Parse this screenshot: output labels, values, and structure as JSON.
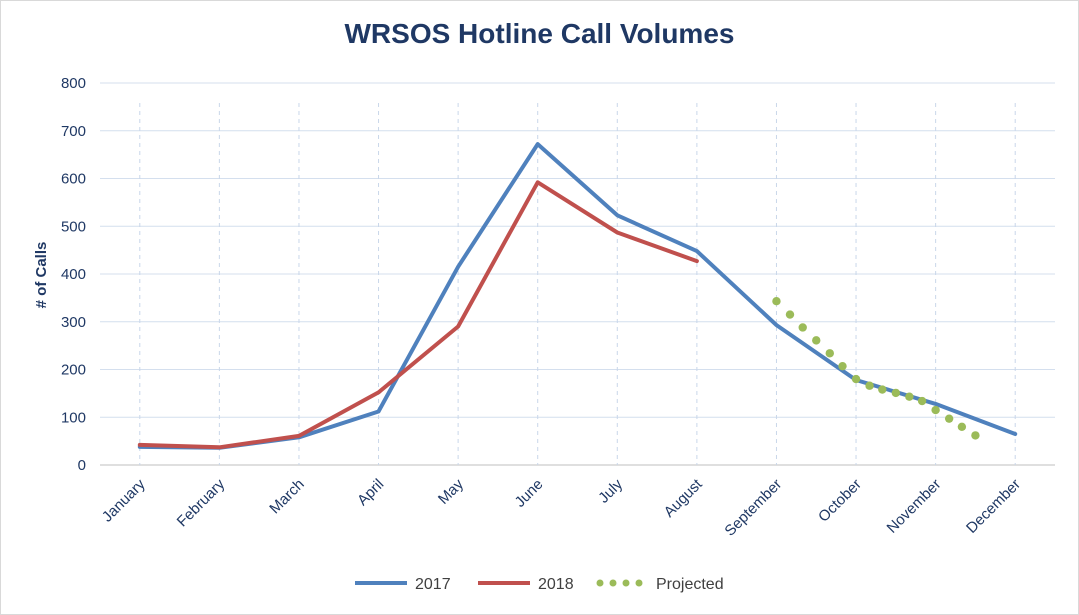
{
  "chart_data": {
    "type": "line",
    "title": "WRSOS Hotline Call Volumes",
    "xlabel": "",
    "ylabel": "# of Calls",
    "ylim": [
      0,
      800
    ],
    "yticks": [
      0,
      100,
      200,
      300,
      400,
      500,
      600,
      700,
      800
    ],
    "grid": true,
    "legend_position": "bottom",
    "categories": [
      "January",
      "February",
      "March",
      "April",
      "May",
      "June",
      "July",
      "August",
      "September",
      "October",
      "November",
      "December"
    ],
    "series": [
      {
        "name": "2017",
        "color": "#4f81bd",
        "style": "solid",
        "values": [
          38,
          36,
          58,
          112,
          415,
          672,
          523,
          448,
          293,
          178,
          128,
          65
        ]
      },
      {
        "name": "2018",
        "color": "#c0504d",
        "style": "solid",
        "values": [
          42,
          37,
          61,
          152,
          290,
          592,
          487,
          427,
          null,
          null,
          null,
          null
        ]
      },
      {
        "name": "Projected",
        "color": "#9bbb59",
        "style": "dotted",
        "points": [
          {
            "x": 8.0,
            "y": 343
          },
          {
            "x": 8.17,
            "y": 315
          },
          {
            "x": 8.33,
            "y": 288
          },
          {
            "x": 8.5,
            "y": 261
          },
          {
            "x": 8.67,
            "y": 234
          },
          {
            "x": 8.83,
            "y": 207
          },
          {
            "x": 9.0,
            "y": 180
          },
          {
            "x": 9.17,
            "y": 166
          },
          {
            "x": 9.33,
            "y": 158
          },
          {
            "x": 9.5,
            "y": 151
          },
          {
            "x": 9.67,
            "y": 143
          },
          {
            "x": 9.83,
            "y": 134
          },
          {
            "x": 10.0,
            "y": 115
          },
          {
            "x": 10.17,
            "y": 97
          },
          {
            "x": 10.33,
            "y": 80
          },
          {
            "x": 10.5,
            "y": 62
          }
        ]
      }
    ]
  }
}
